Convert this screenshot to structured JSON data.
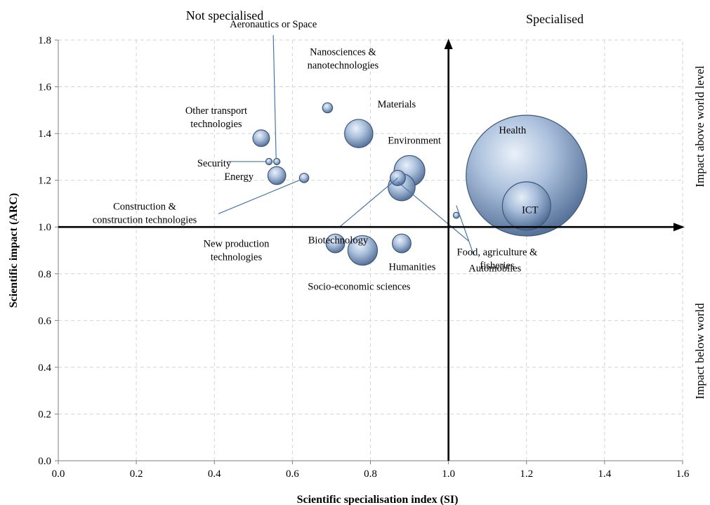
{
  "chart_data": {
    "type": "bubble",
    "xlabel": "Scientific specialisation index (SI)",
    "ylabel": "Scientific impact (ARC)",
    "xlim": [
      0.0,
      1.6
    ],
    "ylim": [
      0.0,
      1.8
    ],
    "xticks": [
      "0.0",
      "0.2",
      "0.4",
      "0.6",
      "0.8",
      "1.0",
      "1.2",
      "1.4",
      "1.6"
    ],
    "yticks": [
      "0.0",
      "0.2",
      "0.4",
      "0.6",
      "0.8",
      "1.0",
      "1.2",
      "1.4",
      "1.6",
      "1.8"
    ],
    "grid": true,
    "reference_lines": {
      "x": 1.0,
      "y": 1.0
    },
    "quadrant_labels": {
      "top_left": "Not specialised",
      "top_right": "Specialised"
    },
    "side_labels": {
      "upper": "Impact above world level",
      "lower": "Impact below world"
    },
    "points": [
      {
        "name": "Health",
        "x": 1.2,
        "y": 1.22,
        "size": 100
      },
      {
        "name": "ICT",
        "x": 1.2,
        "y": 1.09,
        "size": 16
      },
      {
        "name": "Automobiles",
        "x": 1.02,
        "y": 1.05,
        "size": 0.25
      },
      {
        "name": "Environment",
        "x": 0.9,
        "y": 1.24,
        "size": 6.5
      },
      {
        "name": "Food, agriculture & fisheries",
        "x": 0.88,
        "y": 1.17,
        "size": 5
      },
      {
        "name": "Biotechnology",
        "x": 0.87,
        "y": 1.21,
        "size": 1.6
      },
      {
        "name": "Materials",
        "x": 0.77,
        "y": 1.4,
        "size": 5.5
      },
      {
        "name": "Nanosciences & nanotechnologies",
        "x": 0.69,
        "y": 1.51,
        "size": 0.7
      },
      {
        "name": "Construction & construction technologies",
        "x": 0.63,
        "y": 1.21,
        "size": 0.6
      },
      {
        "name": "Energy",
        "x": 0.56,
        "y": 1.22,
        "size": 2.2
      },
      {
        "name": "Aeronautics or Space",
        "x": 0.56,
        "y": 1.28,
        "size": 0.28
      },
      {
        "name": "Security",
        "x": 0.54,
        "y": 1.28,
        "size": 0.28
      },
      {
        "name": "Other transport technologies",
        "x": 0.52,
        "y": 1.38,
        "size": 1.9
      },
      {
        "name": "New production technologies",
        "x": 0.71,
        "y": 0.93,
        "size": 2.4
      },
      {
        "name": "Socio-economic sciences",
        "x": 0.78,
        "y": 0.9,
        "size": 6
      },
      {
        "name": "Humanities",
        "x": 0.88,
        "y": 0.93,
        "size": 2.4
      }
    ]
  }
}
